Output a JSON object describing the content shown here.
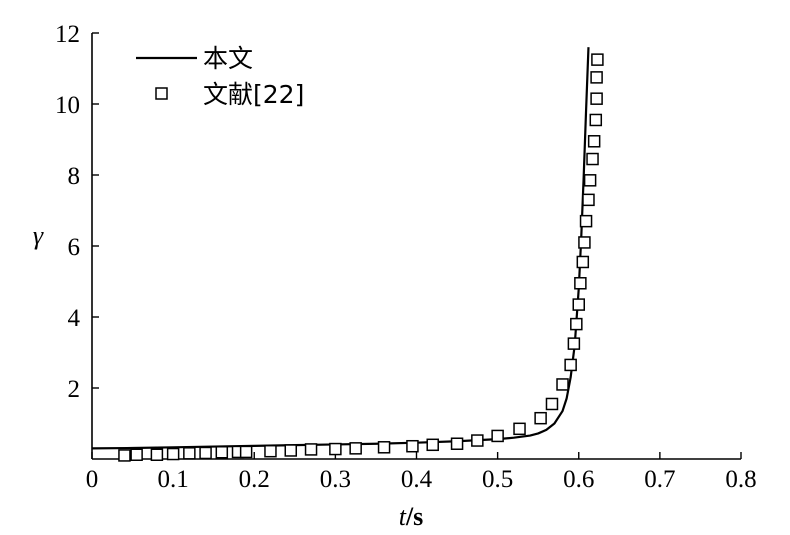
{
  "chart_data": {
    "type": "line",
    "xlabel_italic": "t",
    "xlabel_unit": "/s",
    "ylabel": "γ",
    "xlim": [
      0,
      0.8
    ],
    "ylim": [
      0,
      12
    ],
    "x_ticks": [
      0,
      0.1,
      0.2,
      0.3,
      0.4,
      0.5,
      0.6,
      0.7,
      0.8
    ],
    "x_tick_labels": [
      "0",
      "0.1",
      "0.2",
      "0.3",
      "0.4",
      "0.5",
      "0.6",
      "0.7",
      "0.8"
    ],
    "y_ticks": [
      2,
      4,
      6,
      8,
      10,
      12
    ],
    "y_tick_labels": [
      "2",
      "4",
      "6",
      "8",
      "10",
      "12"
    ],
    "grid": false,
    "legend_position": "top-left",
    "series": [
      {
        "name": "本文",
        "style": "solid-line",
        "color": "#000000",
        "x": [
          0,
          0.05,
          0.1,
          0.15,
          0.2,
          0.25,
          0.3,
          0.35,
          0.4,
          0.45,
          0.5,
          0.52,
          0.54,
          0.55,
          0.56,
          0.57,
          0.58,
          0.585,
          0.59,
          0.595,
          0.6,
          0.603,
          0.606,
          0.609,
          0.612
        ],
        "y": [
          0.3,
          0.31,
          0.33,
          0.35,
          0.37,
          0.39,
          0.41,
          0.43,
          0.46,
          0.5,
          0.56,
          0.6,
          0.66,
          0.72,
          0.82,
          1.0,
          1.35,
          1.7,
          2.3,
          3.2,
          4.8,
          6.2,
          7.9,
          9.8,
          11.6
        ]
      },
      {
        "name": "文献[22]",
        "style": "open-square-marker",
        "color": "#000000",
        "x": [
          0.04,
          0.055,
          0.08,
          0.1,
          0.12,
          0.14,
          0.16,
          0.18,
          0.19,
          0.22,
          0.245,
          0.27,
          0.3,
          0.325,
          0.36,
          0.395,
          0.42,
          0.45,
          0.475,
          0.5,
          0.527,
          0.553,
          0.567,
          0.58,
          0.59,
          0.594,
          0.597,
          0.6,
          0.602,
          0.605,
          0.607,
          0.609,
          0.612,
          0.614,
          0.617,
          0.619,
          0.621,
          0.622
        ],
        "y": [
          0.1,
          0.12,
          0.12,
          0.14,
          0.16,
          0.17,
          0.19,
          0.2,
          0.2,
          0.22,
          0.24,
          0.27,
          0.28,
          0.3,
          0.33,
          0.36,
          0.4,
          0.43,
          0.52,
          0.65,
          0.85,
          1.15,
          1.55,
          2.1,
          2.65,
          3.25,
          3.8,
          4.35,
          4.95,
          5.55,
          6.1,
          6.7,
          7.3,
          7.85,
          8.45,
          8.95,
          9.55,
          10.15
        ]
      }
    ],
    "extra_markers": [
      {
        "x": 0.622,
        "y": 10.75
      },
      {
        "x": 0.623,
        "y": 11.25
      }
    ]
  }
}
